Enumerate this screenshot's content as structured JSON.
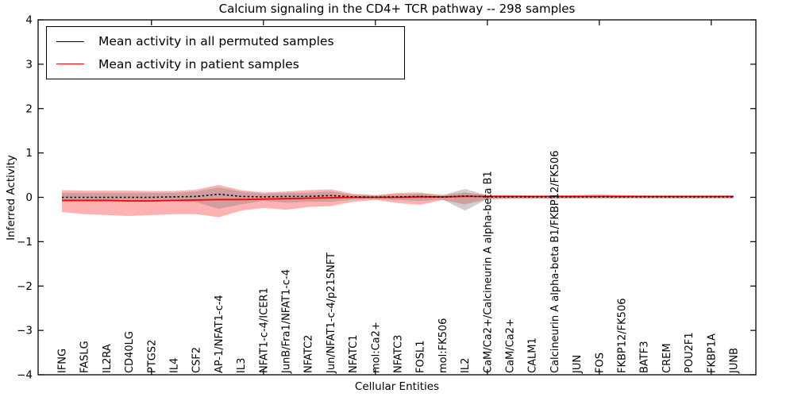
{
  "title": "Calcium signaling in the CD4+ TCR pathway -- 298 samples",
  "axes": {
    "x_label": "Cellular Entities",
    "y_label": "Inferred Activity",
    "y_ticks": [
      4,
      3,
      2,
      1,
      0,
      -1,
      -2,
      -3,
      -4
    ],
    "ylim": [
      -4,
      4
    ],
    "x_major_tick_indices": [
      4,
      9,
      14,
      19,
      24,
      29
    ]
  },
  "legend": {
    "items": [
      {
        "label": "Mean activity in all permuted samples",
        "color": "#000000"
      },
      {
        "label": "Mean activity in patient samples",
        "color": "#ff0000"
      }
    ]
  },
  "colors": {
    "permuted_line": "#000000",
    "patient_line": "#ff0000",
    "permuted_band": "rgba(128,128,128,0.38)",
    "patient_band": "rgba(255,0,0,0.30)",
    "frame": "#000000"
  },
  "chart_data": {
    "type": "line",
    "title": "Calcium signaling in the CD4+ TCR pathway -- 298 samples",
    "xlabel": "Cellular Entities",
    "ylabel": "Inferred Activity",
    "ylim": [
      -4,
      4
    ],
    "grid": false,
    "legend_position": "upper left",
    "categories": [
      "IFNG",
      "FASLG",
      "IL2RA",
      "CD40LG",
      "PTGS2",
      "IL4",
      "CSF2",
      "AP-1/NFAT1-c-4",
      "IL3",
      "NFAT1-c-4/ICER1",
      "JunB/Fra1/NFAT1-c-4",
      "NFATC2",
      "Jun/NFAT1-c-4/p21SNFT",
      "NFATC1",
      "mol:Ca2+",
      "NFATC3",
      "FOSL1",
      "mol:FK506",
      "IL2",
      "CaM/Ca2+/Calcineurin A alpha-beta B1",
      "CaM/Ca2+",
      "CALM1",
      "Calcineurin A alpha-beta B1/FKBP12/FK506",
      "JUN",
      "FOS",
      "FKBP12/FK506",
      "BATF3",
      "CREM",
      "POU2F1",
      "FKBP1A",
      "JUNB"
    ],
    "series": [
      {
        "name": "Mean activity in all permuted samples",
        "style": "dotted-black-line",
        "values": [
          0.0,
          0.0,
          0.0,
          0.0,
          0.0,
          0.01,
          0.02,
          0.07,
          0.02,
          0.01,
          0.02,
          0.02,
          0.04,
          0.01,
          0.005,
          0.01,
          0.02,
          0.005,
          0.03,
          0.01,
          0.01,
          0.01,
          0.01,
          0.01,
          0.01,
          0.01,
          0.01,
          0.01,
          0.01,
          0.01,
          0.01
        ]
      },
      {
        "name": "Mean activity in patient samples",
        "style": "solid-red-line",
        "values": [
          -0.07,
          -0.07,
          -0.07,
          -0.08,
          -0.08,
          -0.07,
          -0.06,
          -0.05,
          -0.05,
          -0.04,
          -0.03,
          -0.02,
          -0.01,
          0.0,
          0.0,
          0.0,
          0.01,
          0.01,
          0.02,
          0.02,
          0.02,
          0.02,
          0.02,
          0.02,
          0.02,
          0.02,
          0.02,
          0.02,
          0.02,
          0.02,
          0.02
        ]
      },
      {
        "name": "Permuted samples band upper",
        "style": "gray-band-upper",
        "values": [
          0.1,
          0.1,
          0.1,
          0.1,
          0.1,
          0.1,
          0.13,
          0.22,
          0.13,
          0.08,
          0.1,
          0.1,
          0.13,
          0.06,
          0.04,
          0.07,
          0.08,
          0.05,
          0.19,
          0.04,
          0.03,
          0.03,
          0.03,
          0.03,
          0.04,
          0.03,
          0.03,
          0.03,
          0.03,
          0.03,
          0.03
        ]
      },
      {
        "name": "Permuted samples band lower",
        "style": "gray-band-lower",
        "values": [
          -0.1,
          -0.1,
          -0.1,
          -0.1,
          -0.1,
          -0.09,
          -0.11,
          -0.26,
          -0.16,
          -0.08,
          -0.12,
          -0.1,
          -0.1,
          -0.05,
          -0.04,
          -0.06,
          -0.08,
          -0.05,
          -0.3,
          -0.04,
          -0.03,
          -0.03,
          -0.03,
          -0.03,
          -0.03,
          -0.03,
          -0.03,
          -0.03,
          -0.03,
          -0.03,
          -0.03
        ]
      },
      {
        "name": "Patient samples band upper",
        "style": "red-band-upper",
        "values": [
          0.16,
          0.15,
          0.15,
          0.15,
          0.14,
          0.14,
          0.17,
          0.28,
          0.16,
          0.11,
          0.13,
          0.16,
          0.18,
          0.08,
          0.05,
          0.1,
          0.11,
          0.05,
          0.11,
          0.05,
          0.05,
          0.04,
          0.04,
          0.05,
          0.07,
          0.05,
          0.04,
          0.04,
          0.04,
          0.04,
          0.04
        ]
      },
      {
        "name": "Patient samples band lower",
        "style": "red-band-lower",
        "values": [
          -0.33,
          -0.38,
          -0.4,
          -0.42,
          -0.4,
          -0.38,
          -0.38,
          -0.45,
          -0.3,
          -0.24,
          -0.28,
          -0.22,
          -0.2,
          -0.1,
          -0.06,
          -0.13,
          -0.17,
          -0.06,
          -0.16,
          -0.04,
          -0.03,
          -0.03,
          -0.03,
          -0.02,
          -0.02,
          -0.02,
          -0.02,
          -0.02,
          -0.02,
          -0.02,
          -0.02
        ]
      }
    ]
  }
}
